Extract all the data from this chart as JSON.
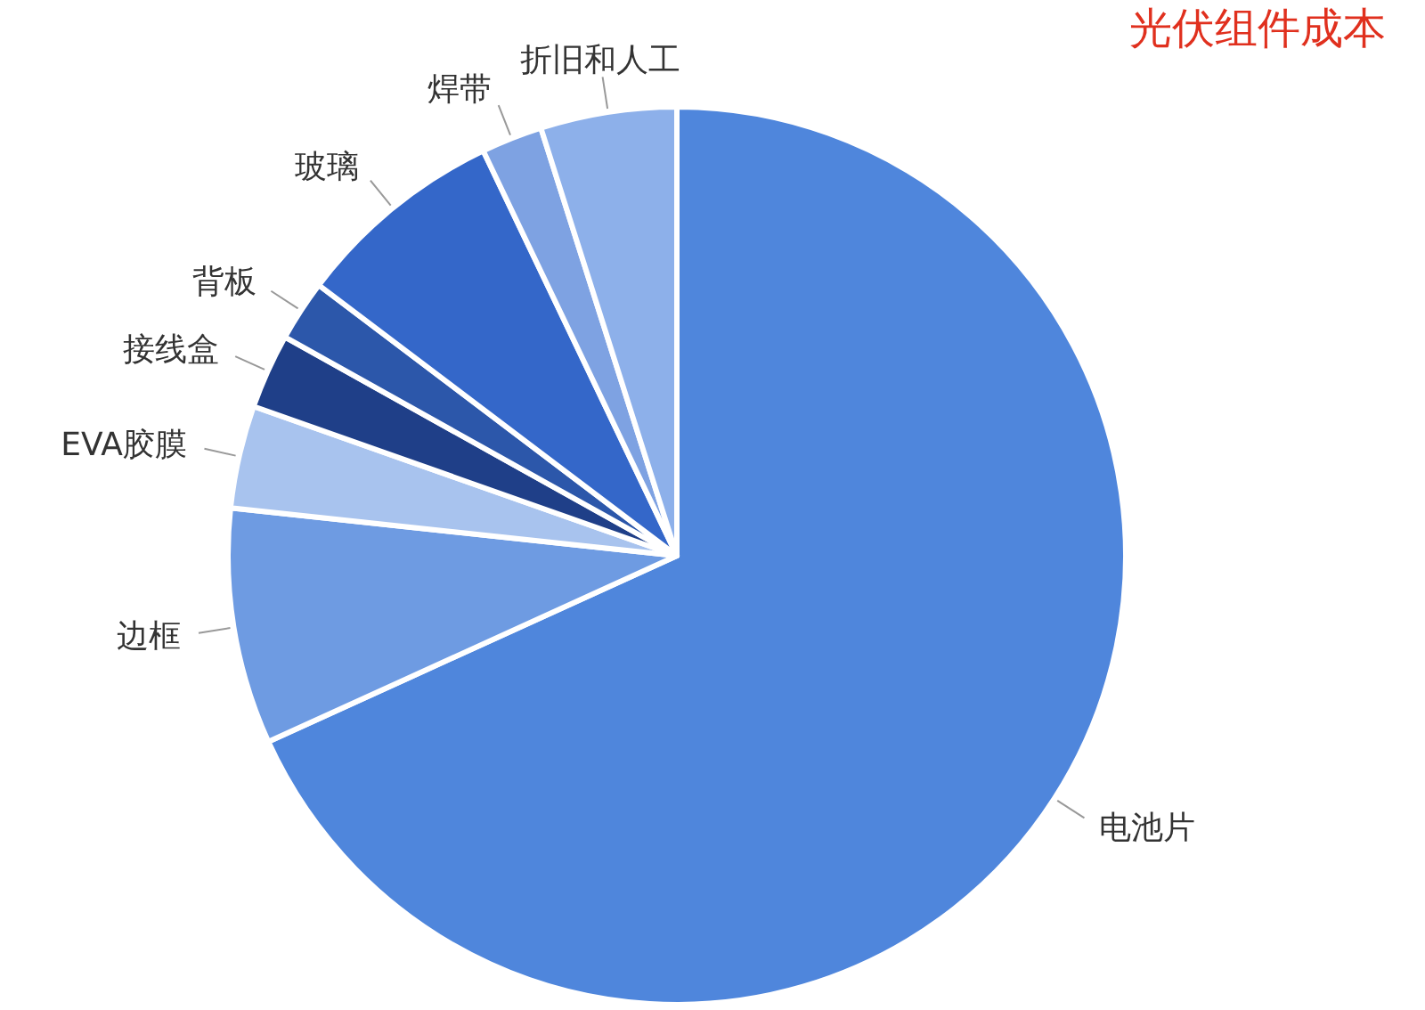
{
  "chart_data": {
    "type": "pie",
    "title": "光伏组件成本",
    "categories": [
      "电池片",
      "边框",
      "EVA胶膜",
      "接线盒",
      "背板",
      "玻璃",
      "焊带",
      "折旧和人工"
    ],
    "values": [
      68.2,
      8.5,
      3.7,
      2.7,
      2.2,
      7.6,
      2.2,
      4.9
    ],
    "colors": [
      "#4f86dc",
      "#6e9be2",
      "#a8c3ee",
      "#1f3f88",
      "#2c57aa",
      "#3467c9",
      "#7ea2e2",
      "#8db0ea"
    ]
  }
}
